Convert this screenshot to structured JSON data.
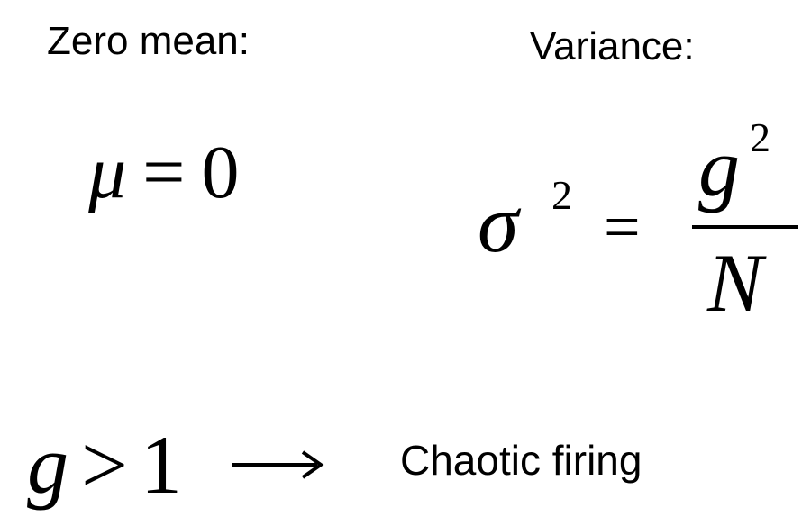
{
  "labels": {
    "zero_mean": "Zero mean:",
    "variance": "Variance:",
    "chaotic": "Chaotic firing"
  },
  "mean_formula": {
    "symbol": "μ",
    "operator": "=",
    "value": "0"
  },
  "variance_formula": {
    "symbol": "σ",
    "exponent": "2",
    "operator": "=",
    "numerator": "g",
    "numerator_exponent": "2",
    "denominator": "N"
  },
  "condition": {
    "variable": "g",
    "operator": ">",
    "value": "1",
    "arrow_icon": "right-arrow-icon"
  }
}
